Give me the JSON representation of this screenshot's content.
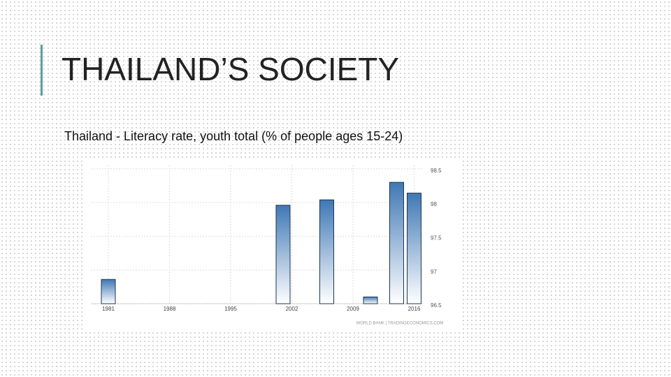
{
  "slide_title": "THAILAND’S SOCIETY",
  "chart_data": {
    "type": "bar",
    "title": "Thailand - Literacy rate, youth total (% of people ages 15-24)",
    "x": [
      1981,
      2001,
      2006,
      2011,
      2014,
      2016
    ],
    "values": [
      96.86,
      97.96,
      98.04,
      96.6,
      98.3,
      98.14
    ],
    "color": "#3f78b5",
    "xlim": [
      1979,
      2017
    ],
    "xticks": [
      1981,
      1988,
      1995,
      2002,
      2009,
      2016
    ],
    "ylim": [
      96.5,
      98.55
    ],
    "yticks": [
      96.5,
      97,
      97.5,
      98,
      98.5
    ],
    "grid": true,
    "source": "WORLD BANK | TRADINGECONOMICS.COM"
  }
}
